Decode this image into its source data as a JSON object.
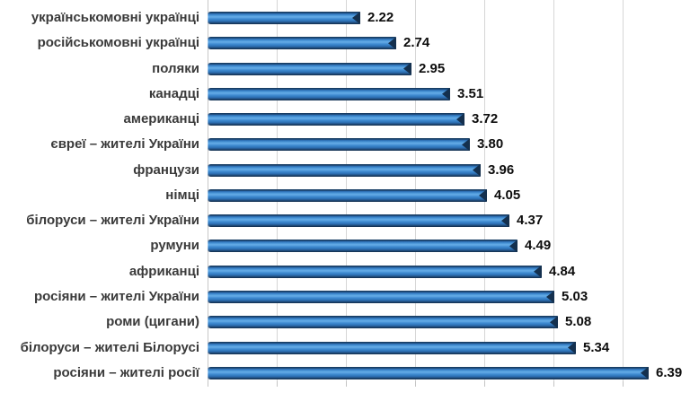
{
  "chart_data": {
    "type": "bar",
    "orientation": "horizontal",
    "title": "",
    "xlabel": "",
    "ylabel": "",
    "categories": [
      "українськомовні українці",
      "російськомовні українці",
      "поляки",
      "канадці",
      "американці",
      "євреї – жителі України",
      "французи",
      "німці",
      "білоруси – жителі України",
      "румуни",
      "африканці",
      "росіяни – жителі України",
      "роми (цигани)",
      "білоруси – жителі Білорусі",
      "росіяни – жителі росії"
    ],
    "values": [
      2.22,
      2.74,
      2.95,
      3.51,
      3.72,
      3.8,
      3.96,
      4.05,
      4.37,
      4.49,
      4.84,
      5.03,
      5.08,
      5.34,
      6.39
    ],
    "value_labels": [
      "2.22",
      "2.74",
      "2.95",
      "3.51",
      "3.72",
      "3.80",
      "3.96",
      "4.05",
      "4.37",
      "4.49",
      "4.84",
      "5.03",
      "5.08",
      "5.34",
      "6.39"
    ],
    "xlim": [
      0,
      7
    ],
    "gridline_interval": 1,
    "grid": true,
    "legend": "none",
    "colors": {
      "bar_main": "#2E76C0",
      "bar_highlight": "#66ACE7",
      "bar_edge": "#14304E",
      "gridline": "#D6D6D6",
      "category_label": "#3A3A3A",
      "value_label": "#0D0D0D",
      "background": "#FFFFFF"
    }
  }
}
